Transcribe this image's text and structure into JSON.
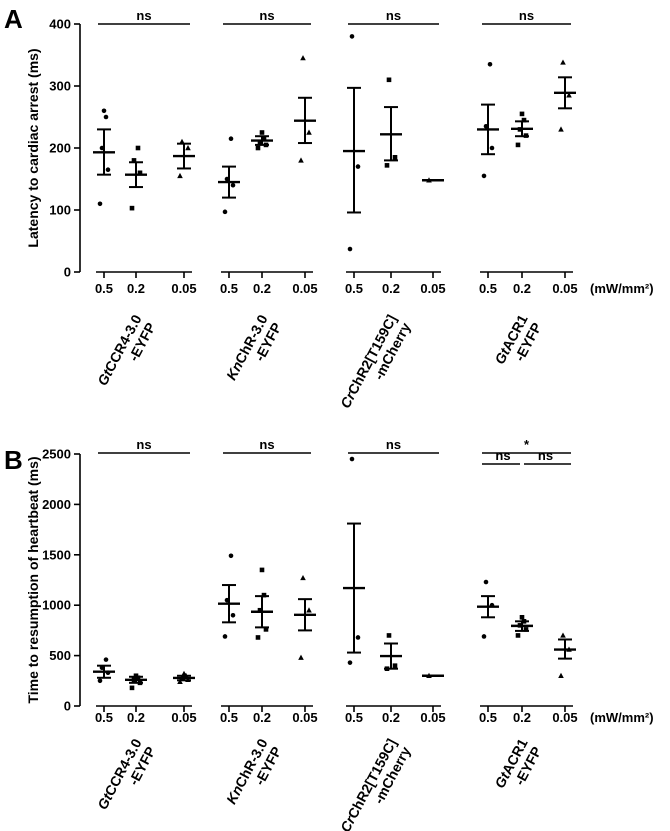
{
  "unit_label": "(mW/mm²)",
  "chart_data": [
    {
      "panel": "A",
      "type": "scatter",
      "ylabel": "Latency to cardiac arrest (ms)",
      "ylim": [
        0,
        400
      ],
      "yticks": [
        0,
        100,
        200,
        300,
        400
      ],
      "categories": [
        "0.5",
        "0.2",
        "0.05"
      ],
      "groups": [
        {
          "name": "GtCCR4-3.0",
          "name2": "-EYFP",
          "marker": "circle",
          "data": [
            {
              "x": "0.5",
              "mean": 193,
              "sem_low": 157,
              "sem_high": 230,
              "points": [
                110,
                165,
                200,
                250,
                260
              ]
            },
            {
              "x": "0.2",
              "mean": 157,
              "sem_low": 137,
              "sem_high": 177,
              "points": [
                103,
                160,
                180,
                200
              ]
            },
            {
              "x": "0.05",
              "mean": 187,
              "sem_low": 167,
              "sem_high": 207,
              "points": [
                155,
                200,
                210
              ]
            }
          ]
        },
        {
          "name": "KnChR-3.0",
          "name2": "-EYFP",
          "marker": "circle",
          "data": [
            {
              "x": "0.5",
              "mean": 145,
              "sem_low": 120,
              "sem_high": 170,
              "points": [
                97,
                140,
                150,
                215
              ]
            },
            {
              "x": "0.2",
              "mean": 212,
              "sem_low": 205,
              "sem_high": 219,
              "points": [
                200,
                205,
                210,
                215,
                225
              ]
            },
            {
              "x": "0.05",
              "mean": 244,
              "sem_low": 208,
              "sem_high": 281,
              "points": [
                180,
                225,
                345
              ]
            }
          ]
        },
        {
          "name": "CrChR2[T159C]",
          "name2": "-mCherry",
          "marker": "circle",
          "data": [
            {
              "x": "0.5",
              "mean": 195,
              "sem_low": 96,
              "sem_high": 297,
              "points": [
                37,
                170,
                380
              ]
            },
            {
              "x": "0.2",
              "mean": 222,
              "sem_low": 180,
              "sem_high": 266,
              "points": [
                172,
                185,
                310
              ]
            },
            {
              "x": "0.05",
              "mean": 148,
              "sem_low": 148,
              "sem_high": 148,
              "points": [
                148
              ]
            }
          ]
        },
        {
          "name": "GtACR1",
          "name2": "-EYFP",
          "marker": "circle",
          "data": [
            {
              "x": "0.5",
              "mean": 230,
              "sem_low": 190,
              "sem_high": 270,
              "points": [
                155,
                200,
                235,
                335
              ]
            },
            {
              "x": "0.2",
              "mean": 231,
              "sem_low": 219,
              "sem_high": 243,
              "points": [
                205,
                220,
                230,
                245,
                255
              ]
            },
            {
              "x": "0.05",
              "mean": 289,
              "sem_low": 264,
              "sem_high": 314,
              "points": [
                230,
                285,
                338
              ]
            }
          ]
        }
      ],
      "sig": [
        {
          "label": "ns"
        },
        {
          "label": "ns"
        },
        {
          "label": "ns"
        },
        {
          "label": "ns"
        }
      ]
    },
    {
      "panel": "B",
      "type": "scatter",
      "ylabel": "Time to resumption of heartbeat (ms)",
      "ylim": [
        0,
        2500
      ],
      "yticks": [
        0,
        500,
        1000,
        1500,
        2000,
        2500
      ],
      "categories": [
        "0.5",
        "0.2",
        "0.05"
      ],
      "groups": [
        {
          "name": "GtCCR4-3.0",
          "name2": "-EYFP",
          "marker": "circle",
          "data": [
            {
              "x": "0.5",
              "mean": 340,
              "sem_low": 280,
              "sem_high": 400,
              "points": [
                250,
                330,
                380,
                460
              ]
            },
            {
              "x": "0.2",
              "mean": 260,
              "sem_low": 230,
              "sem_high": 290,
              "points": [
                180,
                230,
                260,
                280,
                300
              ]
            },
            {
              "x": "0.05",
              "mean": 278,
              "sem_low": 255,
              "sem_high": 300,
              "points": [
                240,
                260,
                280,
                300,
                320
              ]
            }
          ]
        },
        {
          "name": "KnChR-3.0",
          "name2": "-EYFP",
          "marker": "circle",
          "data": [
            {
              "x": "0.5",
              "mean": 1015,
              "sem_low": 830,
              "sem_high": 1200,
              "points": [
                690,
                900,
                1050,
                1490
              ]
            },
            {
              "x": "0.2",
              "mean": 935,
              "sem_low": 780,
              "sem_high": 1090,
              "points": [
                680,
                760,
                950,
                1100,
                1350
              ]
            },
            {
              "x": "0.05",
              "mean": 905,
              "sem_low": 750,
              "sem_high": 1060,
              "points": [
                480,
                950,
                1270
              ]
            }
          ]
        },
        {
          "name": "CrChR2[T159C]",
          "name2": "-mCherry",
          "marker": "circle",
          "data": [
            {
              "x": "0.5",
              "mean": 1170,
              "sem_low": 530,
              "sem_high": 1810,
              "points": [
                430,
                680,
                2450
              ]
            },
            {
              "x": "0.2",
              "mean": 495,
              "sem_low": 370,
              "sem_high": 620,
              "points": [
                370,
                400,
                700
              ]
            },
            {
              "x": "0.05",
              "mean": 300,
              "sem_low": 300,
              "sem_high": 300,
              "points": [
                300
              ]
            }
          ]
        },
        {
          "name": "GtACR1",
          "name2": "-EYFP",
          "marker": "circle",
          "data": [
            {
              "x": "0.5",
              "mean": 985,
              "sem_low": 880,
              "sem_high": 1090,
              "points": [
                690,
                1000,
                1230
              ]
            },
            {
              "x": "0.2",
              "mean": 795,
              "sem_low": 745,
              "sem_high": 840,
              "points": [
                700,
                760,
                800,
                840,
                880
              ]
            },
            {
              "x": "0.05",
              "mean": 560,
              "sem_low": 470,
              "sem_high": 660,
              "points": [
                300,
                560,
                700
              ]
            }
          ]
        }
      ],
      "sig": [
        {
          "label": "ns"
        },
        {
          "label": "ns"
        },
        {
          "label": "ns"
        },
        {
          "label": "*",
          "sub": [
            "ns",
            "ns"
          ]
        }
      ]
    }
  ]
}
